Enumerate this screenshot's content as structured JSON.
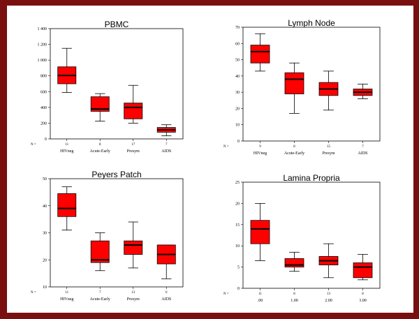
{
  "chart_data": [
    {
      "type": "box",
      "title": "PBMC",
      "categories": [
        "HIVneg",
        "Acute-Early",
        "Presym",
        "AIDS"
      ],
      "n": [
        "11",
        "8",
        "17",
        "7"
      ],
      "n_label": "N =",
      "yticks": [
        "0",
        "200",
        "400",
        "600",
        "800",
        "1 000",
        "1 200",
        "1 400"
      ],
      "ylim": [
        0,
        1400
      ],
      "boxes": [
        {
          "min": 590,
          "q1": 700,
          "median": 805,
          "q3": 915,
          "max": 1150
        },
        {
          "min": 225,
          "q1": 350,
          "median": 380,
          "q3": 535,
          "max": 575
        },
        {
          "min": 200,
          "q1": 255,
          "median": 400,
          "q3": 455,
          "max": 680
        },
        {
          "min": 40,
          "q1": 85,
          "median": 115,
          "q3": 145,
          "max": 180
        }
      ]
    },
    {
      "type": "box",
      "title": "Lymph Node",
      "categories": [
        "HIVneg",
        "Acute-Early",
        "Presym",
        "AIDS"
      ],
      "n": [
        "9",
        "8",
        "15",
        "7"
      ],
      "n_label": "N =",
      "yticks": [
        "0",
        "10",
        "20",
        "30",
        "40",
        "50",
        "60",
        "70"
      ],
      "ylim": [
        0,
        70
      ],
      "boxes": [
        {
          "min": 43,
          "q1": 48,
          "median": 55,
          "q3": 59,
          "max": 66
        },
        {
          "min": 17,
          "q1": 29,
          "median": 38,
          "q3": 42,
          "max": 48
        },
        {
          "min": 19,
          "q1": 28,
          "median": 32,
          "q3": 36,
          "max": 43
        },
        {
          "min": 26,
          "q1": 28,
          "median": 30,
          "q3": 32,
          "max": 35
        }
      ]
    },
    {
      "type": "box",
      "title": "Peyers Patch",
      "categories": [
        "HIVneg",
        "Acute-Early",
        "Presym",
        "AIDS"
      ],
      "n": [
        "11",
        "7",
        "13",
        "6"
      ],
      "n_label": "N =",
      "yticks": [
        "10",
        "20",
        "30",
        "40",
        "50"
      ],
      "ylim": [
        10,
        50
      ],
      "boxes": [
        {
          "min": 31,
          "q1": 36,
          "median": 39,
          "q3": 44.5,
          "max": 47
        },
        {
          "min": 16,
          "q1": 19,
          "median": 20,
          "q3": 27,
          "max": 30
        },
        {
          "min": 17,
          "q1": 22,
          "median": 25.5,
          "q3": 27,
          "max": 34
        },
        {
          "min": 13,
          "q1": 18.5,
          "median": 22,
          "q3": 25.5,
          "max": 25.5
        }
      ]
    },
    {
      "type": "box",
      "title": "Lamina Propria",
      "categories": [
        ".00",
        "1.00",
        "2.00",
        "3.00"
      ],
      "n": [
        "11",
        "8",
        "13",
        "8"
      ],
      "n_label": "N =",
      "yticks": [
        "0",
        "5",
        "10",
        "15",
        "20",
        "25"
      ],
      "ylim": [
        0,
        25
      ],
      "boxes": [
        {
          "min": 6.5,
          "q1": 10.5,
          "median": 14,
          "q3": 16,
          "max": 20
        },
        {
          "min": 4,
          "q1": 5,
          "median": 5.5,
          "q3": 7,
          "max": 8.5
        },
        {
          "min": 2.5,
          "q1": 5.5,
          "median": 6.5,
          "q3": 7.5,
          "max": 10.5
        },
        {
          "min": 2,
          "q1": 2.5,
          "median": 5,
          "q3": 6,
          "max": 8
        }
      ]
    }
  ]
}
